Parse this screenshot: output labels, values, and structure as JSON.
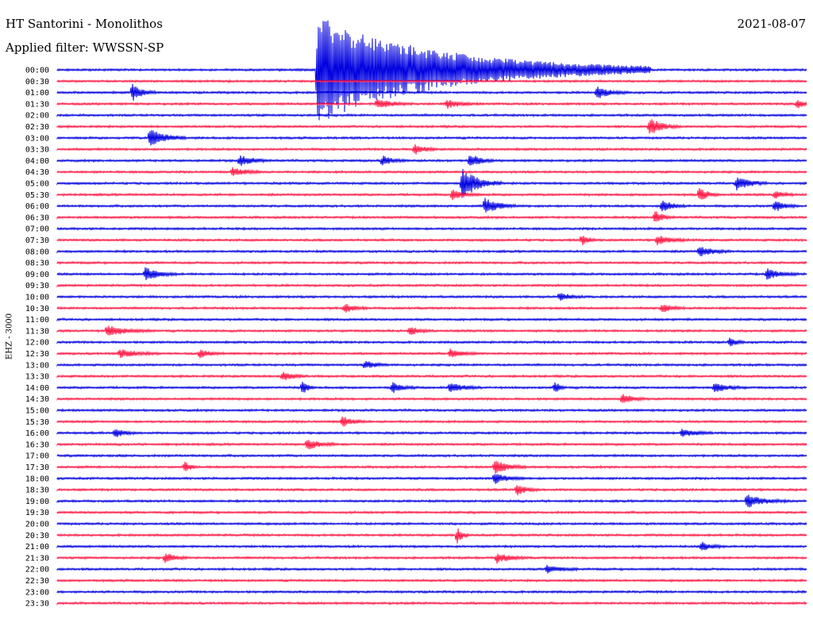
{
  "header": {
    "station": "HT Santorini - Monolithos",
    "filter_label": "Applied filter:",
    "filter_value": "WWSSN-SP",
    "date": "2021-08-07",
    "channel": "EHZ - 3000"
  },
  "colors": {
    "trace_a": "#0000e0",
    "trace_b": "#ff1744",
    "background": "#ffffff"
  },
  "chart_data": {
    "type": "line",
    "title": "HT Santorini - Monolithos",
    "subtitle": "Applied filter: WWSSN-SP",
    "ylabel": "EHZ - 3000",
    "xlabel": "",
    "x_unit": "minutes",
    "xlim": [
      0,
      30
    ],
    "grid": false,
    "rows": [
      "00:00",
      "00:30",
      "01:00",
      "01:30",
      "02:00",
      "02:30",
      "03:00",
      "03:30",
      "04:00",
      "04:30",
      "05:00",
      "05:30",
      "06:00",
      "06:30",
      "07:00",
      "07:30",
      "08:00",
      "08:30",
      "09:00",
      "09:30",
      "10:00",
      "10:30",
      "11:00",
      "11:30",
      "12:00",
      "12:30",
      "13:00",
      "13:30",
      "14:00",
      "14:30",
      "15:00",
      "15:30",
      "16:00",
      "16:30",
      "17:00",
      "17:30",
      "18:00",
      "18:30",
      "19:00",
      "19:30",
      "20:00",
      "20:30",
      "21:00",
      "21:30",
      "22:00",
      "22:30",
      "23:00",
      "23:30"
    ],
    "row_colors": [
      "trace_a",
      "trace_b"
    ],
    "events": [
      {
        "row": "00:00",
        "minute": 10.6,
        "amplitude": 1.0,
        "duration": 40
      },
      {
        "row": "00:00",
        "minute": 10.4,
        "amplitude": 30.0,
        "duration": 420
      },
      {
        "row": "01:00",
        "minute": 3.0,
        "amplitude": 5.0,
        "duration": 30
      },
      {
        "row": "01:00",
        "minute": 21.6,
        "amplitude": 3.5,
        "duration": 40
      },
      {
        "row": "01:30",
        "minute": 12.8,
        "amplitude": 3.0,
        "duration": 45
      },
      {
        "row": "01:30",
        "minute": 15.6,
        "amplitude": 2.5,
        "duration": 40
      },
      {
        "row": "01:30",
        "minute": 29.6,
        "amplitude": 3.0,
        "duration": 20
      },
      {
        "row": "02:30",
        "minute": 23.7,
        "amplitude": 5.0,
        "duration": 40
      },
      {
        "row": "03:00",
        "minute": 3.7,
        "amplitude": 6.0,
        "duration": 45
      },
      {
        "row": "03:30",
        "minute": 14.3,
        "amplitude": 3.0,
        "duration": 30
      },
      {
        "row": "04:00",
        "minute": 7.3,
        "amplitude": 3.0,
        "duration": 40
      },
      {
        "row": "04:00",
        "minute": 13.0,
        "amplitude": 3.0,
        "duration": 30
      },
      {
        "row": "04:00",
        "minute": 16.5,
        "amplitude": 4.5,
        "duration": 30
      },
      {
        "row": "04:30",
        "minute": 7.0,
        "amplitude": 2.5,
        "duration": 40
      },
      {
        "row": "05:00",
        "minute": 16.2,
        "amplitude": 9.0,
        "duration": 50
      },
      {
        "row": "05:00",
        "minute": 27.2,
        "amplitude": 4.0,
        "duration": 40
      },
      {
        "row": "05:30",
        "minute": 15.8,
        "amplitude": 3.0,
        "duration": 35
      },
      {
        "row": "05:30",
        "minute": 25.7,
        "amplitude": 4.0,
        "duration": 25
      },
      {
        "row": "05:30",
        "minute": 28.7,
        "amplitude": 3.0,
        "duration": 25
      },
      {
        "row": "06:00",
        "minute": 17.1,
        "amplitude": 5.0,
        "duration": 40
      },
      {
        "row": "06:00",
        "minute": 24.2,
        "amplitude": 4.0,
        "duration": 30
      },
      {
        "row": "06:00",
        "minute": 28.7,
        "amplitude": 3.5,
        "duration": 30
      },
      {
        "row": "06:30",
        "minute": 23.9,
        "amplitude": 4.0,
        "duration": 25
      },
      {
        "row": "07:30",
        "minute": 21.0,
        "amplitude": 3.0,
        "duration": 20
      },
      {
        "row": "07:30",
        "minute": 24.0,
        "amplitude": 3.0,
        "duration": 40
      },
      {
        "row": "08:00",
        "minute": 25.7,
        "amplitude": 3.0,
        "duration": 40
      },
      {
        "row": "09:00",
        "minute": 3.5,
        "amplitude": 4.0,
        "duration": 40
      },
      {
        "row": "09:00",
        "minute": 28.4,
        "amplitude": 3.0,
        "duration": 40
      },
      {
        "row": "10:00",
        "minute": 20.1,
        "amplitude": 2.5,
        "duration": 30
      },
      {
        "row": "10:30",
        "minute": 11.5,
        "amplitude": 2.5,
        "duration": 30
      },
      {
        "row": "10:30",
        "minute": 24.2,
        "amplitude": 2.5,
        "duration": 30
      },
      {
        "row": "11:30",
        "minute": 2.0,
        "amplitude": 3.0,
        "duration": 60
      },
      {
        "row": "11:30",
        "minute": 14.1,
        "amplitude": 2.5,
        "duration": 30
      },
      {
        "row": "12:00",
        "minute": 26.9,
        "amplitude": 3.0,
        "duration": 20
      },
      {
        "row": "12:30",
        "minute": 2.5,
        "amplitude": 2.5,
        "duration": 50
      },
      {
        "row": "12:30",
        "minute": 5.7,
        "amplitude": 2.5,
        "duration": 30
      },
      {
        "row": "12:30",
        "minute": 15.7,
        "amplitude": 2.5,
        "duration": 40
      },
      {
        "row": "13:00",
        "minute": 12.3,
        "amplitude": 2.5,
        "duration": 30
      },
      {
        "row": "13:30",
        "minute": 9.0,
        "amplitude": 3.0,
        "duration": 30
      },
      {
        "row": "14:00",
        "minute": 9.8,
        "amplitude": 5.0,
        "duration": 15
      },
      {
        "row": "14:00",
        "minute": 13.4,
        "amplitude": 3.0,
        "duration": 30
      },
      {
        "row": "14:00",
        "minute": 15.7,
        "amplitude": 3.0,
        "duration": 40
      },
      {
        "row": "14:00",
        "minute": 19.9,
        "amplitude": 4.0,
        "duration": 15
      },
      {
        "row": "14:00",
        "minute": 26.3,
        "amplitude": 3.0,
        "duration": 40
      },
      {
        "row": "14:30",
        "minute": 22.6,
        "amplitude": 3.0,
        "duration": 30
      },
      {
        "row": "15:30",
        "minute": 11.4,
        "amplitude": 3.0,
        "duration": 30
      },
      {
        "row": "16:00",
        "minute": 2.3,
        "amplitude": 2.5,
        "duration": 30
      },
      {
        "row": "16:00",
        "minute": 25.0,
        "amplitude": 2.5,
        "duration": 40
      },
      {
        "row": "16:30",
        "minute": 10.0,
        "amplitude": 3.0,
        "duration": 40
      },
      {
        "row": "17:30",
        "minute": 17.5,
        "amplitude": 4.0,
        "duration": 40
      },
      {
        "row": "17:30",
        "minute": 5.1,
        "amplitude": 4.0,
        "duration": 15
      },
      {
        "row": "18:00",
        "minute": 17.5,
        "amplitude": 3.0,
        "duration": 40
      },
      {
        "row": "18:30",
        "minute": 18.4,
        "amplitude": 3.0,
        "duration": 30
      },
      {
        "row": "19:00",
        "minute": 27.6,
        "amplitude": 4.0,
        "duration": 50
      },
      {
        "row": "20:30",
        "minute": 16.0,
        "amplitude": 5.0,
        "duration": 15
      },
      {
        "row": "21:00",
        "minute": 25.8,
        "amplitude": 2.5,
        "duration": 30
      },
      {
        "row": "21:30",
        "minute": 4.3,
        "amplitude": 3.0,
        "duration": 30
      },
      {
        "row": "21:30",
        "minute": 17.6,
        "amplitude": 3.0,
        "duration": 40
      },
      {
        "row": "22:00",
        "minute": 19.6,
        "amplitude": 2.5,
        "duration": 40
      }
    ]
  }
}
